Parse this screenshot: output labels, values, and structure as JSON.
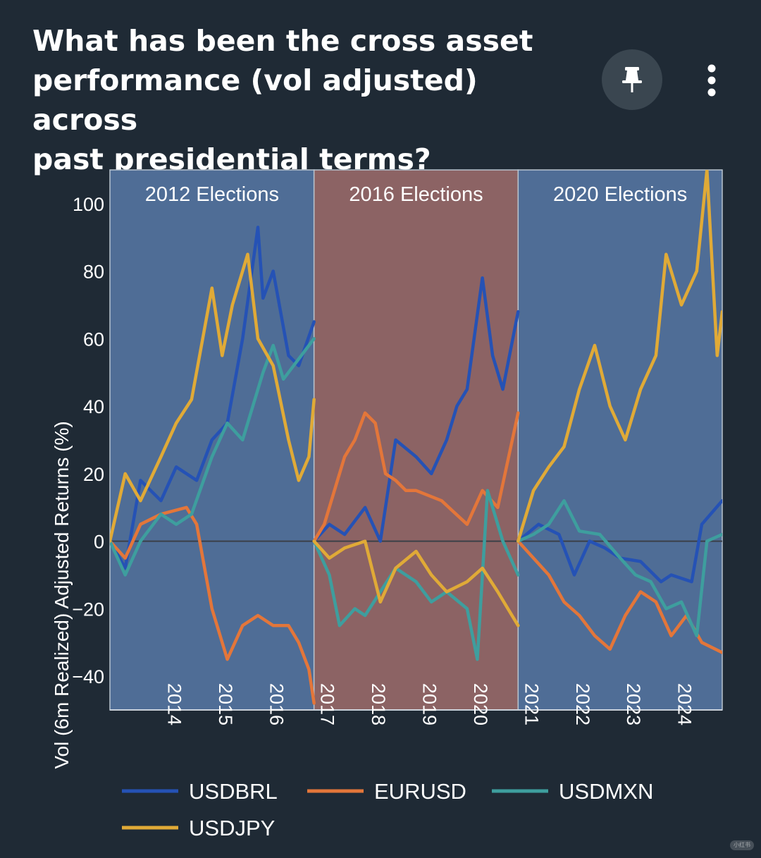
{
  "header": {
    "title_lines": [
      "What has been the cross asset",
      "performance (vol adjusted) across",
      "past presidential terms?"
    ],
    "pin_icon": "pin-icon",
    "more_icon": "more-vertical-icon"
  },
  "watermark": "小红书",
  "colors": {
    "background": "#1f2a35",
    "panel_blue": "#4f6d96",
    "panel_red": "#8c6364",
    "USDBRL": "#2552b5",
    "EURUSD": "#e3763a",
    "USDMXN": "#3e9e9e",
    "USDJPY": "#e0aa37"
  },
  "chart_data": {
    "type": "line",
    "ylabel": "Vol (6m Realized) Adjusted Returns (%)",
    "xlabel": "",
    "ylim": [
      -50,
      110
    ],
    "xlim": [
      2013.0,
      2025.0
    ],
    "yticks": [
      "100",
      "80",
      "60",
      "40",
      "20",
      "0",
      "−20",
      "−40"
    ],
    "ytick_values": [
      100,
      80,
      60,
      40,
      20,
      0,
      -20,
      -40
    ],
    "xticks": [
      "2014",
      "2015",
      "2016",
      "2017",
      "2018",
      "2019",
      "2020",
      "2021",
      "2022",
      "2023",
      "2024"
    ],
    "panels": [
      {
        "label": "2012 Elections",
        "start": 2013.0,
        "end": 2017.0,
        "shade": "blue"
      },
      {
        "label": "2016 Elections",
        "start": 2017.0,
        "end": 2021.0,
        "shade": "red"
      },
      {
        "label": "2020 Elections",
        "start": 2021.0,
        "end": 2025.0,
        "shade": "blue"
      }
    ],
    "legend": [
      "USDBRL",
      "EURUSD",
      "USDMXN",
      "USDJPY"
    ],
    "legend_position": "bottom",
    "series": [
      {
        "name": "USDBRL",
        "segments": [
          {
            "x": [
              2013.0,
              2013.3,
              2013.6,
              2014.0,
              2014.3,
              2014.7,
              2015.0,
              2015.3,
              2015.6,
              2015.9,
              2016.0,
              2016.2,
              2016.5,
              2016.7,
              2017.0
            ],
            "y": [
              0,
              -8,
              18,
              12,
              22,
              18,
              30,
              35,
              60,
              93,
              72,
              80,
              55,
              52,
              65
            ]
          },
          {
            "x": [
              2017.0,
              2017.3,
              2017.6,
              2018.0,
              2018.3,
              2018.6,
              2019.0,
              2019.3,
              2019.6,
              2019.8,
              2020.0,
              2020.3,
              2020.5,
              2020.7,
              2021.0
            ],
            "y": [
              0,
              5,
              2,
              10,
              0,
              30,
              25,
              20,
              30,
              40,
              45,
              78,
              55,
              45,
              68
            ]
          },
          {
            "x": [
              2021.0,
              2021.4,
              2021.8,
              2022.1,
              2022.4,
              2022.7,
              2023.0,
              2023.4,
              2023.8,
              2024.0,
              2024.4,
              2024.6,
              2025.0
            ],
            "y": [
              0,
              5,
              2,
              -10,
              0,
              -2,
              -5,
              -6,
              -12,
              -10,
              -12,
              5,
              12
            ]
          }
        ]
      },
      {
        "name": "EURUSD",
        "segments": [
          {
            "x": [
              2013.0,
              2013.3,
              2013.6,
              2014.0,
              2014.5,
              2014.7,
              2015.0,
              2015.3,
              2015.6,
              2015.9,
              2016.2,
              2016.5,
              2016.7,
              2016.9,
              2017.0
            ],
            "y": [
              0,
              -5,
              5,
              8,
              10,
              5,
              -20,
              -35,
              -25,
              -22,
              -25,
              -25,
              -30,
              -38,
              -48
            ]
          },
          {
            "x": [
              2017.0,
              2017.2,
              2017.4,
              2017.6,
              2017.8,
              2018.0,
              2018.2,
              2018.4,
              2018.6,
              2018.8,
              2019.0,
              2019.5,
              2020.0,
              2020.3,
              2020.6,
              2021.0
            ],
            "y": [
              0,
              5,
              15,
              25,
              30,
              38,
              35,
              20,
              18,
              15,
              15,
              12,
              5,
              15,
              10,
              38
            ]
          },
          {
            "x": [
              2021.0,
              2021.3,
              2021.6,
              2021.9,
              2022.2,
              2022.5,
              2022.8,
              2023.1,
              2023.4,
              2023.7,
              2024.0,
              2024.3,
              2024.6,
              2025.0
            ],
            "y": [
              0,
              -5,
              -10,
              -18,
              -22,
              -28,
              -32,
              -22,
              -15,
              -18,
              -28,
              -22,
              -30,
              -33
            ]
          }
        ]
      },
      {
        "name": "USDMXN",
        "segments": [
          {
            "x": [
              2013.0,
              2013.3,
              2013.6,
              2014.0,
              2014.3,
              2014.6,
              2015.0,
              2015.3,
              2015.6,
              2016.0,
              2016.2,
              2016.4,
              2016.6,
              2017.0
            ],
            "y": [
              0,
              -10,
              0,
              8,
              5,
              8,
              25,
              35,
              30,
              50,
              58,
              48,
              52,
              60
            ]
          },
          {
            "x": [
              2017.0,
              2017.3,
              2017.5,
              2017.8,
              2018.0,
              2018.3,
              2018.6,
              2019.0,
              2019.3,
              2019.6,
              2020.0,
              2020.2,
              2020.4,
              2020.7,
              2021.0
            ],
            "y": [
              0,
              -10,
              -25,
              -20,
              -22,
              -15,
              -8,
              -12,
              -18,
              -15,
              -20,
              -35,
              15,
              0,
              -10
            ]
          },
          {
            "x": [
              2021.0,
              2021.3,
              2021.6,
              2021.9,
              2022.2,
              2022.6,
              2023.0,
              2023.3,
              2023.6,
              2023.9,
              2024.2,
              2024.5,
              2024.7,
              2025.0
            ],
            "y": [
              0,
              2,
              5,
              12,
              3,
              2,
              -5,
              -10,
              -12,
              -20,
              -18,
              -28,
              0,
              2
            ]
          }
        ]
      },
      {
        "name": "USDJPY",
        "segments": [
          {
            "x": [
              2013.0,
              2013.3,
              2013.6,
              2014.0,
              2014.3,
              2014.6,
              2015.0,
              2015.2,
              2015.4,
              2015.7,
              2015.9,
              2016.2,
              2016.5,
              2016.7,
              2016.9,
              2017.0
            ],
            "y": [
              0,
              20,
              12,
              25,
              35,
              42,
              75,
              55,
              70,
              85,
              60,
              52,
              30,
              18,
              25,
              42
            ]
          },
          {
            "x": [
              2017.0,
              2017.3,
              2017.6,
              2018.0,
              2018.3,
              2018.6,
              2019.0,
              2019.3,
              2019.6,
              2020.0,
              2020.3,
              2020.6,
              2020.8,
              2021.0
            ],
            "y": [
              0,
              -5,
              -2,
              0,
              -18,
              -8,
              -3,
              -10,
              -15,
              -12,
              -8,
              -15,
              -20,
              -25
            ]
          },
          {
            "x": [
              2021.0,
              2021.3,
              2021.6,
              2021.9,
              2022.2,
              2022.5,
              2022.8,
              2023.1,
              2023.4,
              2023.7,
              2023.9,
              2024.2,
              2024.5,
              2024.7,
              2024.9,
              2025.0
            ],
            "y": [
              0,
              15,
              22,
              28,
              45,
              58,
              40,
              30,
              45,
              55,
              85,
              70,
              80,
              110,
              55,
              68
            ]
          }
        ]
      }
    ]
  }
}
